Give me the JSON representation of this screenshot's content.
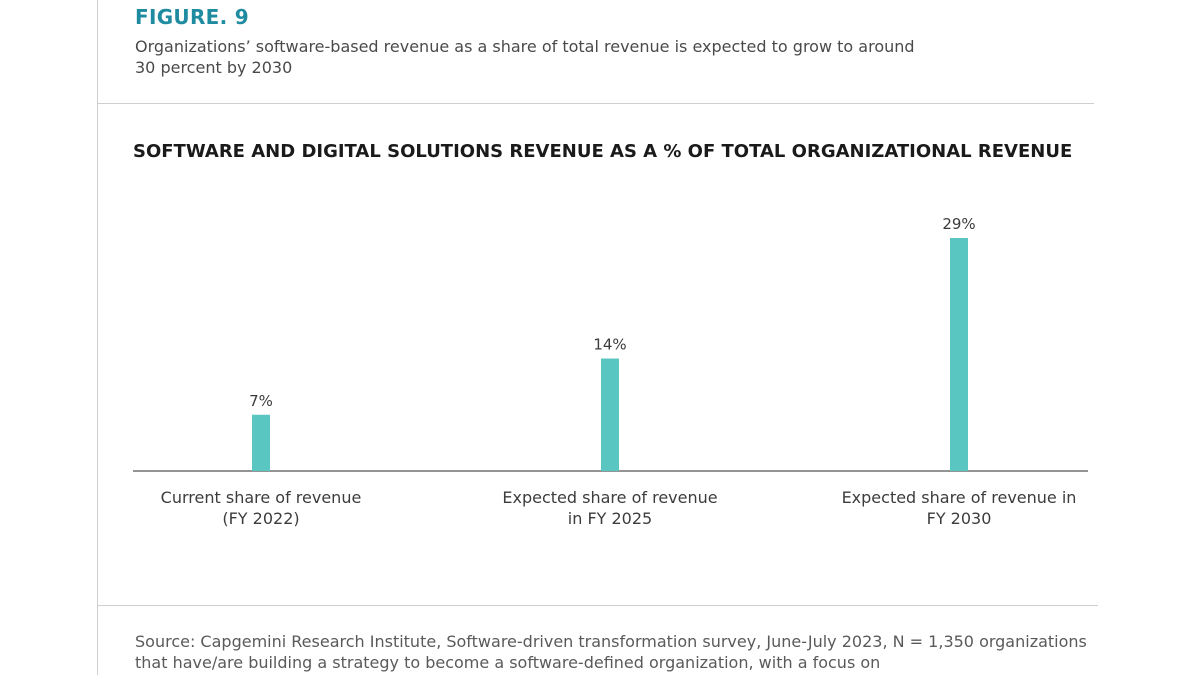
{
  "figure": {
    "label": "FIGURE. 9",
    "subtitle": "Organizations’ software-based revenue as a share of total revenue is expected to grow to around 30 percent by 2030"
  },
  "source": "Source: Capgemini Research Institute, Software-driven transformation survey, June-July 2023, N = 1,350 organizations that have/are building a strategy to become a software-defined organization, with a focus on",
  "chart_data": {
    "type": "bar",
    "title": "SOFTWARE AND DIGITAL SOLUTIONS REVENUE AS A % OF TOTAL ORGANIZATIONAL REVENUE",
    "categories": [
      [
        "Current share of revenue",
        "(FY 2022)"
      ],
      [
        "Expected share of revenue",
        "in FY 2025"
      ],
      [
        "Expected share of revenue in",
        "FY 2030"
      ]
    ],
    "values": [
      7,
      14,
      29
    ],
    "data_labels": [
      "7%",
      "14%",
      "29%"
    ],
    "unit": "%",
    "bar_color": "#5ac6c2",
    "grid": false,
    "legend": "none"
  }
}
